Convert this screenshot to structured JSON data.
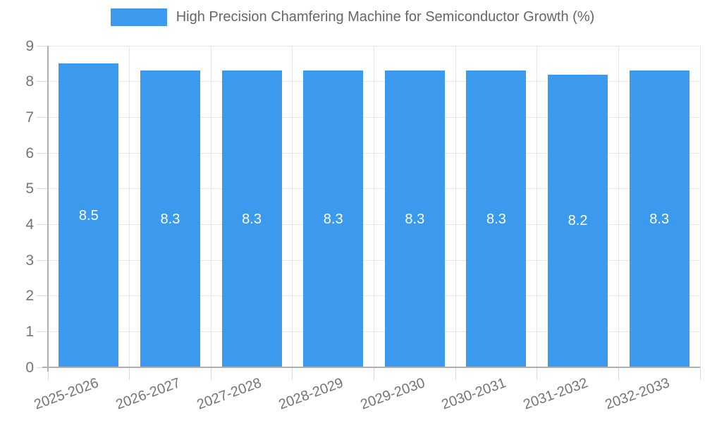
{
  "colors": {
    "bar_fill": "#3B9AEE",
    "bar_label_text": "#FFFFFF",
    "grid_line": "#E6E6E6",
    "axis_line": "#B0B0B0",
    "tick_mark": "#D9D9D9",
    "tick_text": "#757575",
    "legend_text": "#666666"
  },
  "legend": {
    "position": "top",
    "label": "High Precision Chamfering Machine for Semiconductor Growth (%)"
  },
  "chart_data": {
    "type": "bar",
    "title": "High Precision Chamfering Machine for Semiconductor Growth (%)",
    "categories": [
      "2025-2026",
      "2026-2027",
      "2027-2028",
      "2028-2029",
      "2029-2030",
      "2030-2031",
      "2031-2032",
      "2032-2033"
    ],
    "values": [
      8.5,
      8.3,
      8.3,
      8.3,
      8.3,
      8.3,
      8.2,
      8.3
    ],
    "value_labels": [
      "8.5",
      "8.3",
      "8.3",
      "8.3",
      "8.3",
      "8.3",
      "8.2",
      "8.3"
    ],
    "xlabel": "",
    "ylabel": "",
    "ylim": [
      0,
      9
    ],
    "yticks": [
      0,
      1,
      2,
      3,
      4,
      5,
      6,
      7,
      8,
      9
    ],
    "grid": true,
    "legend_position": "top",
    "x_label_rotation_deg": -20,
    "value_label_position": "center"
  }
}
